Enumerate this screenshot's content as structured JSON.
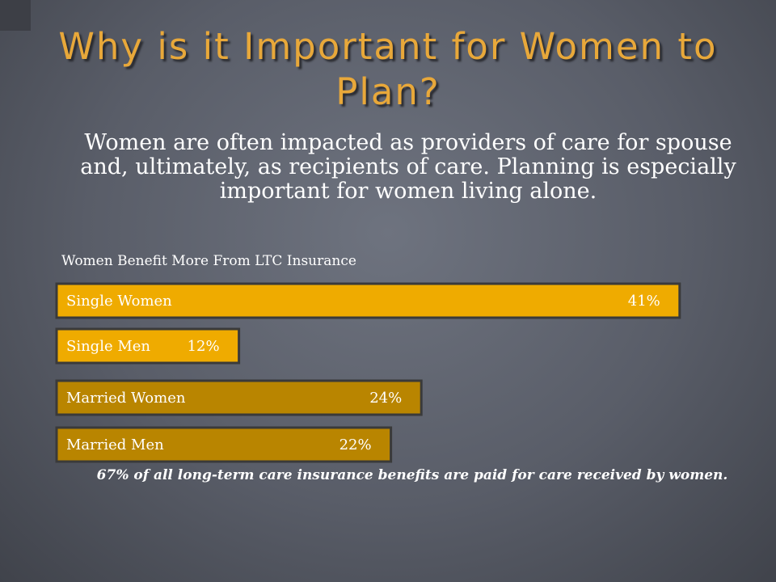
{
  "slide": {
    "title": "Why is it Important for Women to Plan?",
    "body": "Women are often impacted as providers of care for spouse and, ultimately, as recipients of care. Planning is especially important for women living alone.",
    "footnote": "67% of all long-term care insurance benefits are paid for care received by women."
  },
  "chart_data": {
    "type": "bar",
    "orientation": "horizontal",
    "title": "Women Benefit More From LTC Insurance",
    "categories": [
      "Single Women",
      "Single Men",
      "Married Women",
      "Married Men"
    ],
    "values": [
      41,
      12,
      24,
      22
    ],
    "value_labels": [
      "41%",
      "12%",
      "24%",
      "22%"
    ],
    "colors": [
      "#efab00",
      "#efab00",
      "#b98500",
      "#b98500"
    ],
    "border_color": "#3a3a3a",
    "label_color": "#ffffff"
  }
}
